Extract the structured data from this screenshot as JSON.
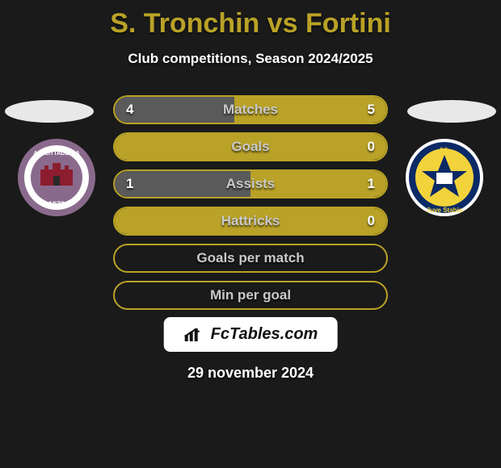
{
  "title_color": "#b9a227",
  "players": {
    "left": "S. Tronchin",
    "right": "Fortini"
  },
  "title": "S. Tronchin vs Fortini",
  "subtitle": "Club competitions, Season 2024/2025",
  "date": "29 november 2024",
  "logo_text": "FcTables.com",
  "colors": {
    "left_fill": "#5a5a5a",
    "right_fill": "#b9a227",
    "row_border": "#b9a227",
    "row_bg_empty": "#1a1a1a",
    "label_text": "#c9c9c9",
    "value_text": "#ffffff"
  },
  "badges": {
    "left": {
      "name": "A.S. Cittadella",
      "outer": "#8a6a8c",
      "inner": "#ffffff",
      "accent": "#8c1d2f",
      "year": "1973"
    },
    "right": {
      "name": "Juve Stabia",
      "outer": "#ffffff",
      "field": "#f2d33b",
      "accent": "#0b2a66"
    }
  },
  "rows": [
    {
      "label": "Matches",
      "left": "4",
      "right": "5",
      "left_pct": 44,
      "right_pct": 56
    },
    {
      "label": "Goals",
      "left": "",
      "right": "0",
      "left_pct": 0,
      "right_pct": 100
    },
    {
      "label": "Assists",
      "left": "1",
      "right": "1",
      "left_pct": 50,
      "right_pct": 50
    },
    {
      "label": "Hattricks",
      "left": "",
      "right": "0",
      "left_pct": 0,
      "right_pct": 100
    },
    {
      "label": "Goals per match",
      "left": "",
      "right": "",
      "left_pct": 0,
      "right_pct": 0
    },
    {
      "label": "Min per goal",
      "left": "",
      "right": "",
      "left_pct": 0,
      "right_pct": 0
    }
  ]
}
